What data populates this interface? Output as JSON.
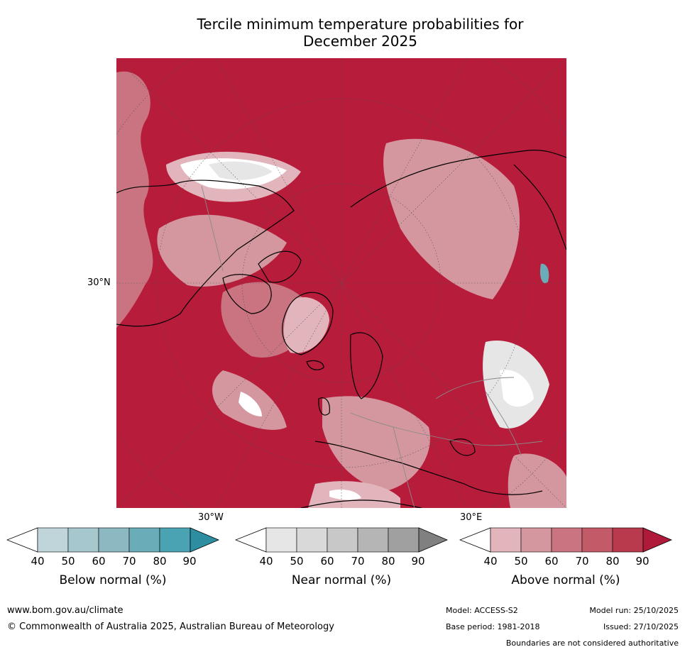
{
  "title_line1": "Tercile minimum temperature probabilities for",
  "title_line2": "December 2025",
  "map": {
    "latitude_label": "30°N",
    "longitude_labels": {
      "west": "30°W",
      "east": "30°E"
    },
    "colors": {
      "ocean_land_background": "#b71c3b",
      "coastline": "#000000",
      "borders": "#8a8a8a",
      "graticule": "#555555"
    }
  },
  "colorbars": [
    {
      "title": "Below normal (%)",
      "ticks": [
        "40",
        "50",
        "60",
        "70",
        "80",
        "90"
      ],
      "colors": [
        "#ffffff",
        "#bfd5da",
        "#a6c7cd",
        "#8bb8c1",
        "#6aacb8",
        "#4aa3b2",
        "#2e8ea1"
      ]
    },
    {
      "title": "Near normal (%)",
      "ticks": [
        "40",
        "50",
        "60",
        "70",
        "80",
        "90"
      ],
      "colors": [
        "#ffffff",
        "#e6e6e6",
        "#d9d9d9",
        "#c8c8c8",
        "#b5b5b5",
        "#a0a0a0",
        "#808080"
      ]
    },
    {
      "title": "Above normal (%)",
      "ticks": [
        "40",
        "50",
        "60",
        "70",
        "80",
        "90"
      ],
      "colors": [
        "#ffffff",
        "#e2b5bc",
        "#d5979f",
        "#c97480",
        "#c25a68",
        "#b93a4c",
        "#b01a3a"
      ]
    }
  ],
  "footer": {
    "website": "www.bom.gov.au/climate",
    "copyright": "© Commonwealth of Australia 2025, Australian Bureau of Meteorology",
    "model": "Model: ACCESS-S2",
    "base_period": "Base period: 1981-2018",
    "model_run": "Model run: 25/10/2025",
    "issued": "Issued: 27/10/2025",
    "disclaimer": "Boundaries are not considered authoritative"
  }
}
